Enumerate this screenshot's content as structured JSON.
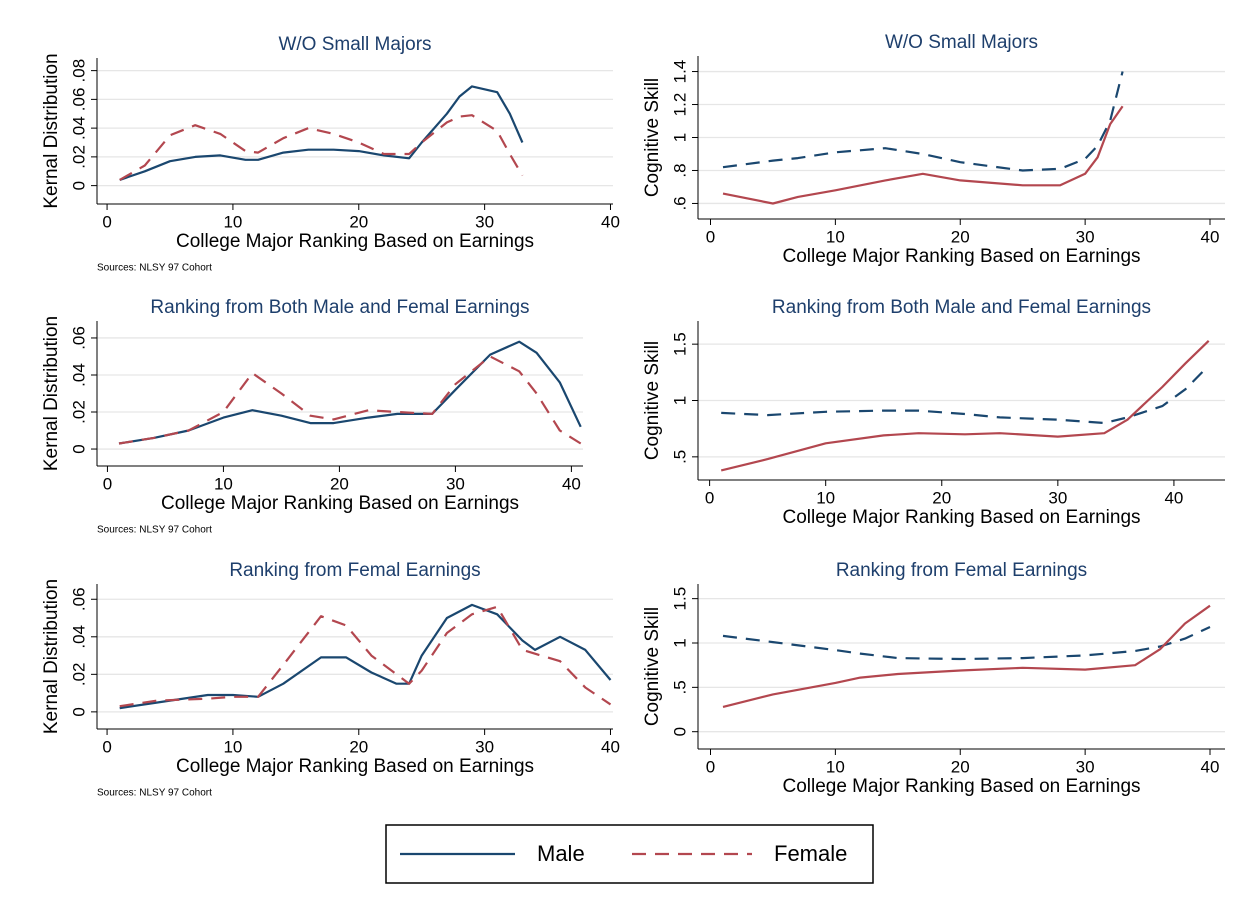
{
  "chart_data": [
    {
      "type": "line",
      "title": "W/O Small Majors",
      "xlabel": "College Major Ranking Based on Earnings",
      "ylabel": "Kernal Distribution",
      "note": "Sources: NLSY 97 Cohort",
      "x": [
        1,
        3,
        5,
        7,
        9,
        11,
        12,
        14,
        16,
        18,
        20,
        22,
        24,
        25,
        27,
        28,
        29,
        31,
        32,
        33
      ],
      "series": [
        {
          "name": "Male",
          "color": "#1a476f",
          "dash": false,
          "values": [
            0.004,
            0.01,
            0.017,
            0.02,
            0.021,
            0.018,
            0.018,
            0.023,
            0.025,
            0.025,
            0.024,
            0.021,
            0.019,
            0.03,
            0.05,
            0.062,
            0.069,
            0.065,
            0.05,
            0.03
          ]
        },
        {
          "name": "Female",
          "color": "#b3474f",
          "dash": true,
          "values": [
            0.004,
            0.014,
            0.035,
            0.042,
            0.036,
            0.024,
            0.023,
            0.033,
            0.04,
            0.036,
            0.03,
            0.022,
            0.022,
            0.03,
            0.044,
            0.048,
            0.049,
            0.038,
            0.022,
            0.007
          ]
        }
      ],
      "xlim": [
        -0.8,
        40.2
      ],
      "xticks": [
        0,
        10,
        20,
        30,
        40
      ],
      "ylim": [
        -0.01,
        0.086
      ],
      "yticks": [
        0,
        {
          "value": 0.02,
          "label": ".02"
        },
        {
          "value": 0.04,
          "label": ".04"
        },
        {
          "value": 0.06,
          "label": ".06"
        },
        {
          "value": 0.08,
          "label": ".08"
        }
      ],
      "grid": true
    },
    {
      "type": "line",
      "title": "W/O Small Majors",
      "xlabel": "College Major Ranking Based on Earnings",
      "ylabel": "Cognitive Skill",
      "x": [
        1,
        5,
        7,
        10,
        14,
        17,
        20,
        25,
        28,
        30,
        31,
        32,
        33
      ],
      "series": [
        {
          "name": "Male",
          "color": "#1a476f",
          "dash": true,
          "values": [
            0.82,
            0.86,
            0.875,
            0.91,
            0.935,
            0.9,
            0.85,
            0.8,
            0.81,
            0.87,
            0.95,
            1.1,
            1.4
          ]
        },
        {
          "name": "Female",
          "color": "#b3474f",
          "dash": false,
          "values": [
            0.66,
            0.6,
            0.64,
            0.68,
            0.74,
            0.78,
            0.74,
            0.71,
            0.71,
            0.78,
            0.88,
            1.08,
            1.19
          ]
        }
      ],
      "xlim": [
        -1,
        41.2
      ],
      "xticks": [
        0,
        10,
        20,
        30,
        40
      ],
      "ylim": [
        0.53,
        1.47
      ],
      "yticks": [
        {
          "value": 0.6,
          "label": ".6"
        },
        {
          "value": 0.8,
          "label": ".8"
        },
        1,
        1.2,
        1.4
      ],
      "grid": true
    },
    {
      "type": "line",
      "title": "Ranking from Both Male and Femal Earnings",
      "xlabel": "College Major Ranking Based on Earnings",
      "ylabel": "Kernal Distribution",
      "note": "Sources: NLSY 97 Cohort",
      "x": [
        1,
        4,
        7,
        10,
        12.5,
        15,
        17.5,
        19.5,
        22.5,
        25,
        28,
        30,
        33,
        35.5,
        37,
        39,
        40.8
      ],
      "series": [
        {
          "name": "Male",
          "color": "#1a476f",
          "dash": false,
          "values": [
            0.003,
            0.006,
            0.01,
            0.017,
            0.021,
            0.018,
            0.014,
            0.014,
            0.017,
            0.019,
            0.019,
            0.032,
            0.051,
            0.058,
            0.052,
            0.036,
            0.012
          ]
        },
        {
          "name": "Female",
          "color": "#b3474f",
          "dash": true,
          "values": [
            0.003,
            0.006,
            0.01,
            0.02,
            0.041,
            0.03,
            0.018,
            0.016,
            0.021,
            0.02,
            0.019,
            0.035,
            0.05,
            0.042,
            0.03,
            0.01,
            0.003
          ]
        }
      ],
      "xlim": [
        -0.9,
        41
      ],
      "xticks": [
        0,
        10,
        20,
        30,
        40
      ],
      "ylim": [
        -0.007,
        0.067
      ],
      "yticks": [
        0,
        {
          "value": 0.02,
          "label": ".02"
        },
        {
          "value": 0.04,
          "label": ".04"
        },
        {
          "value": 0.06,
          "label": ".06"
        }
      ],
      "grid": true
    },
    {
      "type": "line",
      "title": "Ranking from Both Male and Femal Earnings",
      "xlabel": "College Major Ranking Based on Earnings",
      "ylabel": "Cognitive Skill",
      "x": [
        1,
        5,
        10,
        15,
        18,
        22,
        25,
        30,
        34,
        36,
        39,
        41,
        43
      ],
      "series": [
        {
          "name": "Male",
          "color": "#1a476f",
          "dash": true,
          "values": [
            0.89,
            0.87,
            0.9,
            0.91,
            0.91,
            0.88,
            0.85,
            0.83,
            0.8,
            0.85,
            0.95,
            1.1,
            1.31
          ]
        },
        {
          "name": "Female",
          "color": "#b3474f",
          "dash": false,
          "values": [
            0.38,
            0.48,
            0.62,
            0.69,
            0.71,
            0.7,
            0.71,
            0.68,
            0.71,
            0.83,
            1.12,
            1.33,
            1.53
          ]
        }
      ],
      "xlim": [
        -1,
        44.4
      ],
      "xticks": [
        0,
        10,
        20,
        30,
        40
      ],
      "ylim": [
        0.33,
        1.67
      ],
      "yticks": [
        {
          "value": 0.5,
          "label": ".5"
        },
        1,
        1.5
      ],
      "grid": true
    },
    {
      "type": "line",
      "title": "Ranking from Femal Earnings",
      "xlabel": "College Major Ranking Based on Earnings",
      "ylabel": "Kernal Distribution",
      "note": "Sources: NLSY 97 Cohort",
      "x": [
        1,
        4,
        8,
        10,
        12,
        14,
        17,
        19,
        21,
        23,
        24,
        25,
        27,
        29,
        31,
        33,
        34,
        36,
        38,
        40
      ],
      "series": [
        {
          "name": "Male",
          "color": "#1a476f",
          "dash": false,
          "values": [
            0.002,
            0.005,
            0.009,
            0.009,
            0.008,
            0.015,
            0.029,
            0.029,
            0.021,
            0.015,
            0.015,
            0.03,
            0.05,
            0.057,
            0.052,
            0.038,
            0.033,
            0.04,
            0.033,
            0.017
          ]
        },
        {
          "name": "Female",
          "color": "#b3474f",
          "dash": true,
          "values": [
            0.003,
            0.006,
            0.007,
            0.008,
            0.008,
            0.025,
            0.051,
            0.046,
            0.03,
            0.02,
            0.015,
            0.022,
            0.042,
            0.052,
            0.056,
            0.033,
            0.031,
            0.027,
            0.013,
            0.004
          ]
        }
      ],
      "xlim": [
        -0.8,
        40.2
      ],
      "xticks": [
        0,
        10,
        20,
        30,
        40
      ],
      "ylim": [
        -0.007,
        0.066
      ],
      "yticks": [
        0,
        {
          "value": 0.02,
          "label": ".02"
        },
        {
          "value": 0.04,
          "label": ".04"
        },
        {
          "value": 0.06,
          "label": ".06"
        }
      ],
      "grid": true
    },
    {
      "type": "line",
      "title": "Ranking from Femal Earnings",
      "xlabel": "College Major Ranking Based on Earnings",
      "ylabel": "Cognitive Skill",
      "x": [
        1,
        5,
        10,
        12,
        15,
        20,
        25,
        30,
        34,
        36,
        38,
        40
      ],
      "series": [
        {
          "name": "Male",
          "color": "#1a476f",
          "dash": true,
          "values": [
            1.08,
            1.01,
            0.92,
            0.88,
            0.83,
            0.82,
            0.83,
            0.86,
            0.91,
            0.96,
            1.05,
            1.18
          ]
        },
        {
          "name": "Female",
          "color": "#b3474f",
          "dash": false,
          "values": [
            0.28,
            0.42,
            0.55,
            0.61,
            0.65,
            0.69,
            0.72,
            0.7,
            0.75,
            0.93,
            1.22,
            1.42
          ]
        }
      ],
      "xlim": [
        -1,
        41.2
      ],
      "xticks": [
        0,
        10,
        20,
        30,
        40
      ],
      "ylim": [
        -0.15,
        1.62
      ],
      "yticks": [
        0,
        {
          "value": 0.5,
          "label": ".5"
        },
        1,
        1.5
      ],
      "grid": true
    }
  ]
}
